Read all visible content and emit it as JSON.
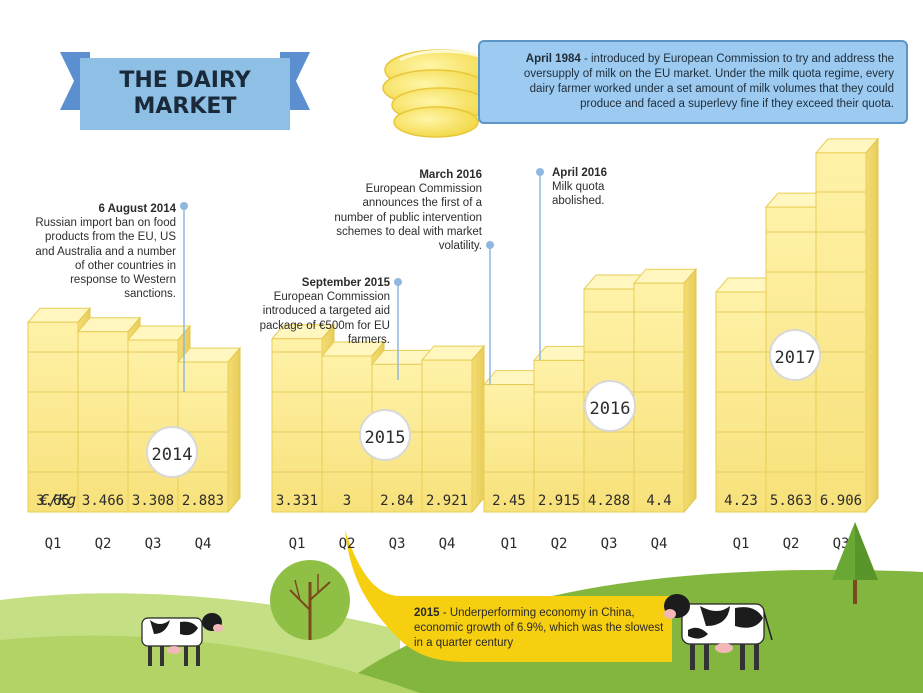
{
  "title": "THE DAIRY\nMARKET",
  "title_lines": [
    "THE DAIRY",
    "MARKET"
  ],
  "quota_note": {
    "date": "April 1984",
    "text": " - introduced by European Commission to try and address the oversupply of milk on the EU market. Under the milk quota regime, every dairy farmer worked under a set amount of milk volumes that they could produce and faced a superlevy fine if they exceed their quota."
  },
  "events": [
    {
      "date": "6 August 2014",
      "text": "Russian import ban on food products from the EU, US and Australia and a number of other countries in response to Western sanctions."
    },
    {
      "date": "September 2015",
      "text": "European Commission introduced a targeted aid package of €500m for EU farmers."
    },
    {
      "date": "March 2016",
      "text": "European Commission announces the first of a number of public intervention schemes to deal with market volatility."
    },
    {
      "date": "April 2016",
      "text": "Milk quota abolished."
    }
  ],
  "china_note": {
    "date": "2015",
    "text": " - Underperforming economy in China, economic growth of 6.9%, which was the slowest in a quarter century"
  },
  "chart_data": {
    "type": "bar",
    "unit_label": "€/Kg",
    "categories": [
      "Q1",
      "Q2",
      "Q3",
      "Q4",
      "Q1",
      "Q2",
      "Q3",
      "Q4",
      "Q1",
      "Q2",
      "Q3",
      "Q4",
      "Q1",
      "Q2",
      "Q3"
    ],
    "years": [
      {
        "label": "2014",
        "quarters": [
          "Q1",
          "Q2",
          "Q3",
          "Q4"
        ]
      },
      {
        "label": "2015",
        "quarters": [
          "Q1",
          "Q2",
          "Q3",
          "Q4"
        ]
      },
      {
        "label": "2016",
        "quarters": [
          "Q1",
          "Q2",
          "Q3",
          "Q4"
        ]
      },
      {
        "label": "2017",
        "quarters": [
          "Q1",
          "Q2",
          "Q3"
        ]
      }
    ],
    "series": [
      {
        "values": [
          3.65,
          3.466,
          3.308,
          2.883,
          3.331,
          3,
          2.84,
          2.921,
          2.45,
          2.915,
          4.288,
          4.4,
          4.23,
          5.863,
          6.906
        ]
      }
    ],
    "value_labels": [
      "3.65",
      "3.466",
      "3.308",
      "2.883",
      "3.331",
      "3",
      "2.84",
      "2.921",
      "2.45",
      "2.915",
      "4.288",
      "4.4",
      "4.23",
      "5.863",
      "6.906"
    ]
  },
  "colors": {
    "butter_front": "#fbe88a",
    "butter_top": "#fff7bf",
    "butter_edge": "#e7cd55",
    "sky_box": "#9ccaf0",
    "banner": "#8ec0e6",
    "banner_tail": "#5b8fd0",
    "grass_light": "#b6d56a",
    "grass_dark": "#7fb43a",
    "callout": "#f6cf10"
  },
  "icons": [
    "butter-curl-icon",
    "cow-icon",
    "bare-tree-icon",
    "pine-tree-icon"
  ]
}
